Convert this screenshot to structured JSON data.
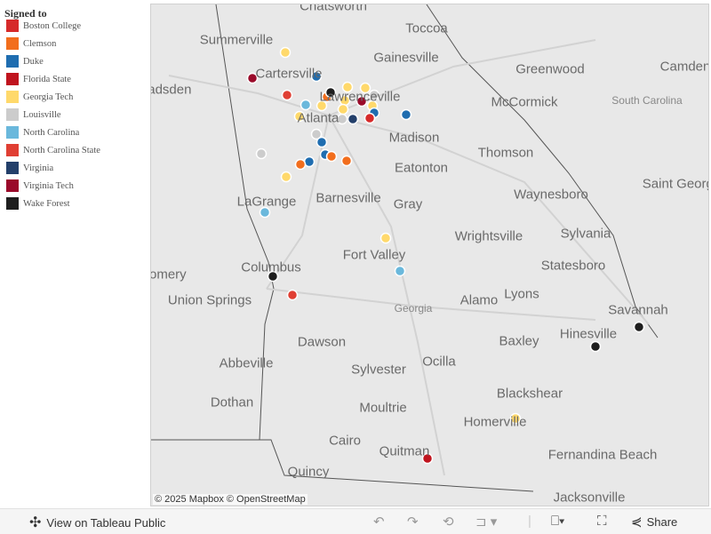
{
  "legend": {
    "title": "Signed to",
    "items": [
      {
        "label": "Boston College",
        "color": "#d62a2a"
      },
      {
        "label": "Clemson",
        "color": "#f26e1d"
      },
      {
        "label": "Duke",
        "color": "#1f6db0"
      },
      {
        "label": "Florida State",
        "color": "#c0141e"
      },
      {
        "label": "Georgia Tech",
        "color": "#ffd96b"
      },
      {
        "label": "Louisville",
        "color": "#cccccc"
      },
      {
        "label": "North Carolina",
        "color": "#6ab8dc"
      },
      {
        "label": "North Carolina State",
        "color": "#e03f33"
      },
      {
        "label": "Virginia",
        "color": "#233f6a"
      },
      {
        "label": "Virginia Tech",
        "color": "#9a0a2a"
      },
      {
        "label": "Wake Forest",
        "color": "#1e1e1e"
      }
    ]
  },
  "map": {
    "cities": [
      "Chatsworth",
      "Toccoa",
      "Summerville",
      "Gainesville",
      "Greenwood",
      "Camden",
      "Cartersville",
      "Gadsden",
      "Lawrenceville",
      "McCormick",
      "South Carolina",
      "Atlanta",
      "Madison",
      "Thomson",
      "Eatonton",
      "Saint George",
      "LaGrange",
      "Barnesville",
      "Gray",
      "Waynesboro",
      "Wrightsville",
      "Sylvania",
      "Fort Valley",
      "Columbus",
      "Statesboro",
      "Montgomery",
      "Union Springs",
      "Georgia",
      "Alamo",
      "Lyons",
      "Savannah",
      "Dawson",
      "Baxley",
      "Hinesville",
      "Abbeville",
      "Sylvester",
      "Ocilla",
      "Dothan",
      "Moultrie",
      "Blackshear",
      "Homerville",
      "Cairo",
      "Quitman",
      "Fernandina Beach",
      "Quincy",
      "Jacksonville"
    ],
    "attribution": "© 2025 Mapbox  © OpenStreetMap"
  },
  "toolbar": {
    "view_label": "View on Tableau Public",
    "share_label": "Share"
  }
}
